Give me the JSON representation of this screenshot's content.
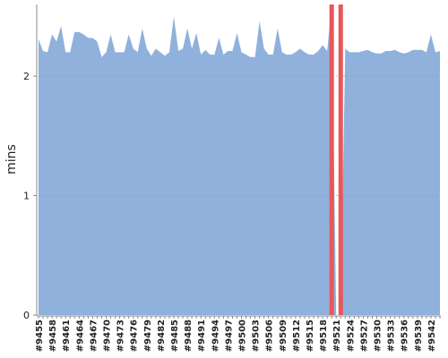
{
  "chart_data": {
    "type": "area",
    "y_label": "mins",
    "categories": [
      "#9455",
      null,
      null,
      "#9458",
      null,
      null,
      "#9461",
      null,
      null,
      "#9464",
      null,
      null,
      "#9467",
      null,
      null,
      "#9470",
      null,
      null,
      "#9473",
      null,
      null,
      "#9476",
      null,
      null,
      "#9479",
      null,
      null,
      "#9482",
      null,
      null,
      "#9485",
      null,
      null,
      "#9488",
      null,
      null,
      "#9491",
      null,
      null,
      "#9494",
      null,
      null,
      "#9497",
      null,
      null,
      "#9500",
      null,
      null,
      "#9503",
      null,
      null,
      "#9506",
      null,
      null,
      "#9509",
      null,
      null,
      "#9512",
      null,
      null,
      "#9515",
      null,
      null,
      "#9518",
      null,
      null,
      "#9521",
      null,
      null,
      "#9524",
      null,
      null,
      "#9527",
      null,
      null,
      "#9530",
      null,
      null,
      "#9533",
      null,
      null,
      "#9536",
      null,
      null,
      "#9539",
      null,
      null,
      "#9542",
      null,
      null
    ],
    "values": [
      2.31,
      2.21,
      2.2,
      2.35,
      2.29,
      2.42,
      2.2,
      2.2,
      2.37,
      2.37,
      2.35,
      2.32,
      2.32,
      2.29,
      2.16,
      2.2,
      2.35,
      2.2,
      2.2,
      2.2,
      2.35,
      2.23,
      2.2,
      2.4,
      2.23,
      2.17,
      2.23,
      2.2,
      2.17,
      2.2,
      2.5,
      2.21,
      2.23,
      2.4,
      2.23,
      2.36,
      2.18,
      2.22,
      2.18,
      2.18,
      2.32,
      2.18,
      2.21,
      2.21,
      2.36,
      2.2,
      2.18,
      2.16,
      2.16,
      2.46,
      2.23,
      2.18,
      2.18,
      2.4,
      2.2,
      2.18,
      2.18,
      2.2,
      2.23,
      2.2,
      2.18,
      2.18,
      2.21,
      2.26,
      2.21,
      2.6,
      0,
      0,
      2.23,
      2.2,
      2.2,
      2.2,
      2.21,
      2.22,
      2.2,
      2.19,
      2.19,
      2.21,
      2.21,
      2.22,
      2.2,
      2.19,
      2.2,
      2.22,
      2.22,
      2.22,
      2.2,
      2.35,
      2.2,
      2.21
    ],
    "color": "#8fb1dc",
    "highlight": {
      "color": "#e8575a",
      "values": [
        null,
        null,
        null,
        null,
        null,
        null,
        null,
        null,
        null,
        null,
        null,
        null,
        null,
        null,
        null,
        null,
        null,
        null,
        null,
        null,
        null,
        null,
        null,
        null,
        null,
        null,
        null,
        null,
        null,
        null,
        null,
        null,
        null,
        null,
        null,
        null,
        null,
        null,
        null,
        null,
        null,
        null,
        null,
        null,
        null,
        null,
        null,
        null,
        null,
        null,
        null,
        null,
        null,
        null,
        null,
        null,
        null,
        null,
        null,
        null,
        null,
        null,
        null,
        null,
        null,
        2.6,
        null,
        2.6,
        null,
        null,
        null,
        null,
        null,
        null,
        null,
        null,
        null,
        null,
        null,
        null,
        null,
        null,
        null,
        null,
        null,
        null,
        null,
        null,
        null,
        null
      ]
    },
    "ylim": [
      0,
      2.6
    ],
    "yticks": [
      0,
      1,
      2
    ],
    "grid": true
  }
}
